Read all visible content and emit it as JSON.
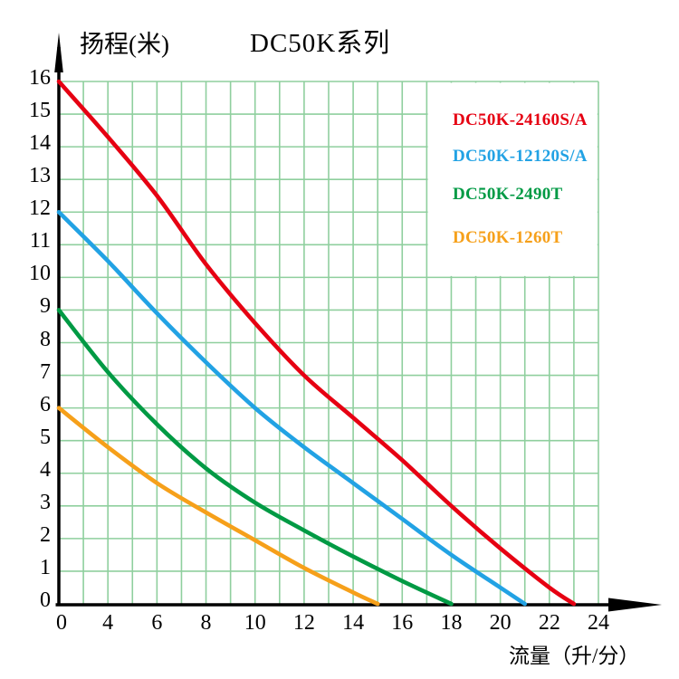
{
  "title": "DC50K系列",
  "chart_data": {
    "type": "line",
    "title": "DC50K系列",
    "xlabel": "流量（升/分）",
    "ylabel": "扬程(米)",
    "xlim": [
      0,
      24
    ],
    "ylim": [
      0,
      16
    ],
    "grid": true,
    "grid_color": "#8fcf9e",
    "axis_color": "#000000",
    "legend_position": "top-right",
    "axis_note": "x labels 4-24 are spaced every 2 gridlines; the printed 0-to-4 gap equals one 2-gridline step",
    "x_ticks": [
      {
        "label": "0",
        "pos": 0
      },
      {
        "label": "4",
        "pos": 2
      },
      {
        "label": "6",
        "pos": 4
      },
      {
        "label": "8",
        "pos": 6
      },
      {
        "label": "10",
        "pos": 8
      },
      {
        "label": "12",
        "pos": 10
      },
      {
        "label": "14",
        "pos": 12
      },
      {
        "label": "16",
        "pos": 14
      },
      {
        "label": "18",
        "pos": 16
      },
      {
        "label": "20",
        "pos": 18
      },
      {
        "label": "22",
        "pos": 20
      },
      {
        "label": "24",
        "pos": 22
      }
    ],
    "y_ticks": [
      "0",
      "1",
      "2",
      "3",
      "4",
      "5",
      "6",
      "7",
      "8",
      "9",
      "10",
      "11",
      "12",
      "13",
      "14",
      "15",
      "16"
    ],
    "series": [
      {
        "name": "DC50K-24160S/A",
        "color": "#e60012",
        "points": [
          [
            0,
            16
          ],
          [
            4,
            14.3
          ],
          [
            6,
            12.5
          ],
          [
            8,
            10.4
          ],
          [
            10,
            8.6
          ],
          [
            12,
            7.0
          ],
          [
            14,
            5.7
          ],
          [
            16,
            4.4
          ],
          [
            18,
            3.0
          ],
          [
            20,
            1.7
          ],
          [
            22,
            0.5
          ],
          [
            23,
            0
          ]
        ]
      },
      {
        "name": "DC50K-12120S/A",
        "color": "#22a2e4",
        "points": [
          [
            0,
            12
          ],
          [
            4,
            10.5
          ],
          [
            6,
            8.9
          ],
          [
            8,
            7.4
          ],
          [
            10,
            6.0
          ],
          [
            12,
            4.8
          ],
          [
            14,
            3.7
          ],
          [
            16,
            2.6
          ],
          [
            18,
            1.5
          ],
          [
            20,
            0.5
          ],
          [
            21,
            0
          ]
        ]
      },
      {
        "name": "DC50K-2490T",
        "color": "#009a44",
        "points": [
          [
            0,
            9
          ],
          [
            4,
            7.1
          ],
          [
            6,
            5.5
          ],
          [
            8,
            4.15
          ],
          [
            10,
            3.1
          ],
          [
            12,
            2.25
          ],
          [
            14,
            1.45
          ],
          [
            16,
            0.7
          ],
          [
            18,
            0
          ]
        ]
      },
      {
        "name": "DC50K-1260T",
        "color": "#f6a01a",
        "points": [
          [
            0,
            6
          ],
          [
            4,
            4.8
          ],
          [
            6,
            3.7
          ],
          [
            8,
            2.8
          ],
          [
            10,
            1.95
          ],
          [
            12,
            1.1
          ],
          [
            14,
            0.35
          ],
          [
            15,
            0
          ]
        ]
      }
    ]
  }
}
